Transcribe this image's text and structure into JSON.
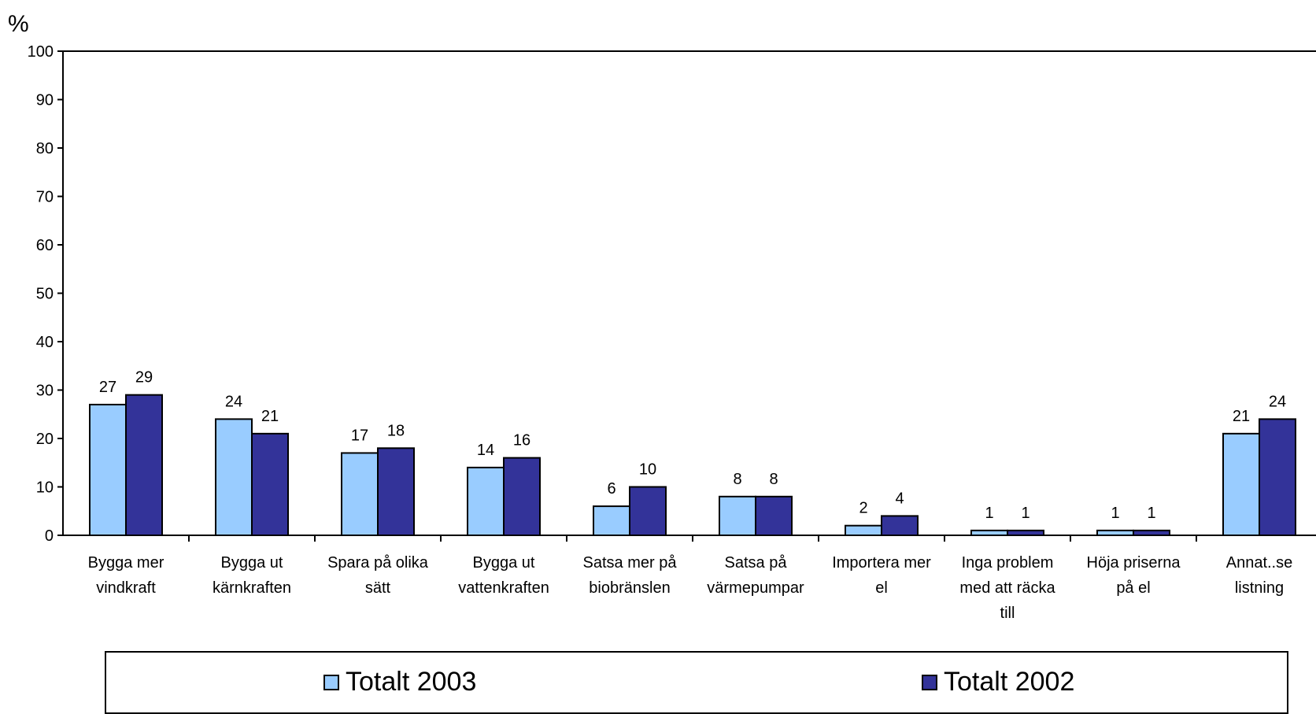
{
  "chart_data": {
    "type": "bar",
    "ylabel": "%",
    "ylim": [
      0,
      100
    ],
    "yticks": [
      0,
      10,
      20,
      30,
      40,
      50,
      60,
      70,
      80,
      90,
      100
    ],
    "categories": [
      [
        "Bygga mer",
        "vindkraft"
      ],
      [
        "Bygga ut",
        "kärnkraften"
      ],
      [
        "Spara på olika",
        "sätt"
      ],
      [
        "Bygga ut",
        "vattenkraften"
      ],
      [
        "Satsa mer på",
        "biobränslen"
      ],
      [
        "Satsa på",
        "värmepumpar"
      ],
      [
        "Importera mer",
        "el"
      ],
      [
        "Inga problem",
        "med att räcka",
        "till"
      ],
      [
        "Höja priserna",
        "på el"
      ],
      [
        "Annat..se",
        "listning"
      ]
    ],
    "series": [
      {
        "name": "Totalt 2003",
        "color": "#99ccff",
        "values": [
          27,
          24,
          17,
          14,
          6,
          8,
          2,
          1,
          1,
          21
        ]
      },
      {
        "name": "Totalt 2002",
        "color": "#333399",
        "values": [
          29,
          21,
          18,
          16,
          10,
          8,
          4,
          1,
          1,
          24
        ]
      }
    ],
    "grid": false,
    "legend": "bottom"
  }
}
